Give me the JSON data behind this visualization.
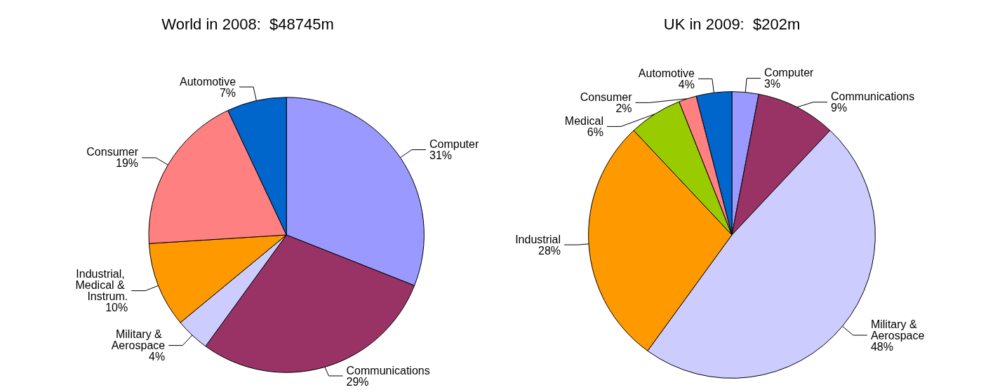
{
  "chart_data": [
    {
      "type": "pie",
      "title": "World in 2008:  $48745m",
      "categories": [
        "Computer",
        "Communications",
        "Military & Aerospace",
        "Industrial, Medical & Instrum.",
        "Consumer",
        "Automotive"
      ],
      "values": [
        31,
        29,
        4,
        10,
        19,
        7
      ],
      "value_labels": [
        "31%",
        "29%",
        "4%",
        "10%",
        "19%",
        "7%"
      ],
      "colors": [
        "#9999ff",
        "#993366",
        "#ccccff",
        "#ff9900",
        "#ff8080",
        "#0066cc"
      ],
      "legend": false
    },
    {
      "type": "pie",
      "title": "UK in 2009:  $202m",
      "categories": [
        "Computer",
        "Communications",
        "Military & Aerospace",
        "Industrial",
        "Medical",
        "Consumer",
        "Automotive"
      ],
      "values": [
        3,
        9,
        48,
        28,
        6,
        2,
        4
      ],
      "value_labels": [
        "3%",
        "9%",
        "48%",
        "28%",
        "6%",
        "2%",
        "4%"
      ],
      "colors": [
        "#9999ff",
        "#993366",
        "#ccccff",
        "#ff9900",
        "#99cc00",
        "#ff8080",
        "#0066cc"
      ],
      "legend": false
    }
  ]
}
